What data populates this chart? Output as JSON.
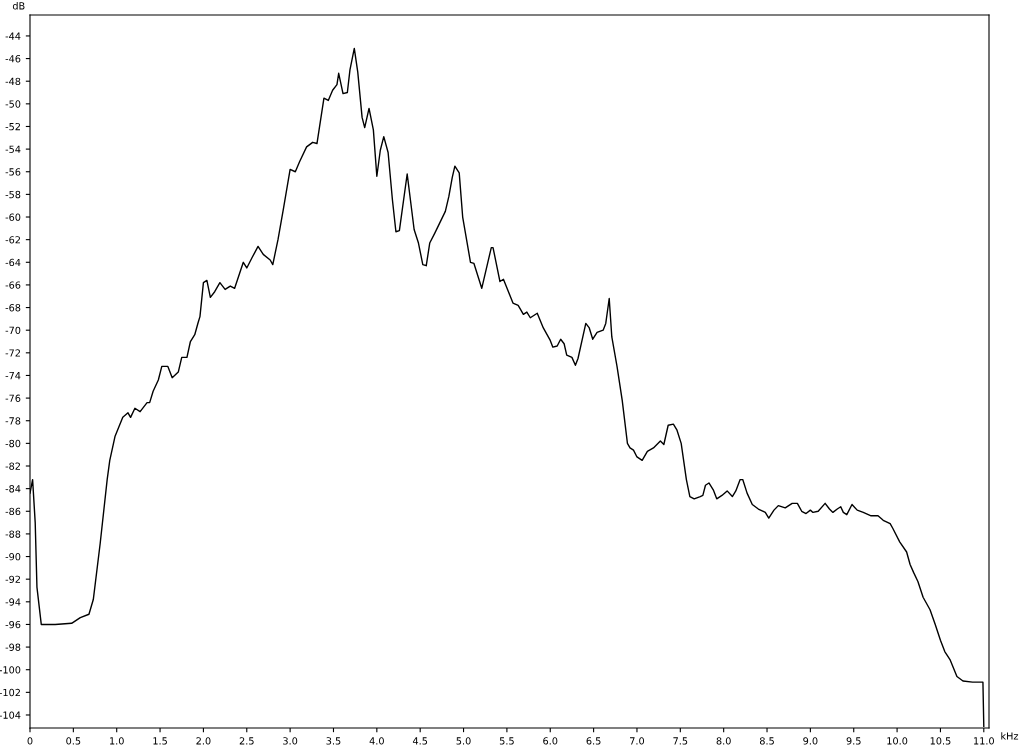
{
  "chart_data": {
    "type": "line",
    "xlabel": "kHz",
    "ylabel": "dB",
    "xlim": [
      0,
      11.06
    ],
    "ylim": [
      -105.15,
      -42.15
    ],
    "xticks": [
      {
        "value": 0,
        "label": "0"
      },
      {
        "value": 0.5,
        "label": "0.5"
      },
      {
        "value": 1,
        "label": "1.0"
      },
      {
        "value": 1.5,
        "label": "1.5"
      },
      {
        "value": 2,
        "label": "2.0"
      },
      {
        "value": 2.5,
        "label": "2.5"
      },
      {
        "value": 3,
        "label": "3.0"
      },
      {
        "value": 3.5,
        "label": "3.5"
      },
      {
        "value": 4,
        "label": "4.0"
      },
      {
        "value": 4.5,
        "label": "4.5"
      },
      {
        "value": 5,
        "label": "5.0"
      },
      {
        "value": 5.5,
        "label": "5.5"
      },
      {
        "value": 6,
        "label": "6.0"
      },
      {
        "value": 6.5,
        "label": "6.5"
      },
      {
        "value": 7,
        "label": "7.0"
      },
      {
        "value": 7.5,
        "label": "7.5"
      },
      {
        "value": 8,
        "label": "8.0"
      },
      {
        "value": 8.5,
        "label": "8.5"
      },
      {
        "value": 9,
        "label": "9.0"
      },
      {
        "value": 9.5,
        "label": "9.5"
      },
      {
        "value": 10,
        "label": "10.0"
      },
      {
        "value": 10.5,
        "label": "10.5"
      },
      {
        "value": 11,
        "label": "11.0"
      }
    ],
    "yticks": [
      -44,
      -46,
      -48,
      -50,
      -52,
      -54,
      -56,
      -58,
      -60,
      -62,
      -64,
      -66,
      -68,
      -70,
      -72,
      -74,
      -76,
      -78,
      -80,
      -82,
      -84,
      -86,
      -88,
      -90,
      -92,
      -94,
      -96,
      -98,
      -100,
      -102,
      -104
    ],
    "marker": "none",
    "line_style": "solid",
    "series": [
      {
        "color": "#000000",
        "x": [
          0.0,
          0.03,
          0.06,
          0.08,
          0.13,
          0.29,
          0.48,
          0.58,
          0.68,
          0.73,
          0.81,
          0.89,
          0.92,
          0.98,
          1.07,
          1.13,
          1.16,
          1.21,
          1.27,
          1.35,
          1.38,
          1.42,
          1.48,
          1.52,
          1.59,
          1.64,
          1.71,
          1.75,
          1.81,
          1.85,
          1.9,
          1.94,
          1.96,
          2.0,
          2.04,
          2.08,
          2.13,
          2.19,
          2.25,
          2.31,
          2.36,
          2.46,
          2.5,
          2.56,
          2.63,
          2.69,
          2.77,
          2.8,
          2.86,
          2.92,
          3.0,
          3.06,
          3.11,
          3.19,
          3.26,
          3.31,
          3.34,
          3.39,
          3.44,
          3.49,
          3.54,
          3.56,
          3.61,
          3.66,
          3.69,
          3.74,
          3.78,
          3.83,
          3.86,
          3.91,
          3.96,
          4.0,
          4.04,
          4.08,
          4.13,
          4.18,
          4.22,
          4.26,
          4.35,
          4.43,
          4.48,
          4.53,
          4.57,
          4.61,
          4.67,
          4.79,
          4.83,
          4.87,
          4.9,
          4.95,
          4.99,
          5.08,
          5.12,
          5.21,
          5.32,
          5.34,
          5.42,
          5.46,
          5.57,
          5.63,
          5.69,
          5.73,
          5.77,
          5.85,
          5.92,
          6.0,
          6.03,
          6.08,
          6.12,
          6.16,
          6.19,
          6.25,
          6.29,
          6.32,
          6.41,
          6.45,
          6.49,
          6.54,
          6.61,
          6.64,
          6.68,
          6.71,
          6.77,
          6.83,
          6.89,
          6.92,
          6.96,
          7.0,
          7.06,
          7.12,
          7.19,
          7.27,
          7.31,
          7.36,
          7.42,
          7.46,
          7.51,
          7.57,
          7.61,
          7.66,
          7.73,
          7.76,
          7.79,
          7.83,
          7.88,
          7.92,
          7.98,
          8.04,
          8.1,
          8.14,
          8.19,
          8.22,
          8.27,
          8.33,
          8.4,
          8.48,
          8.52,
          8.58,
          8.63,
          8.71,
          8.79,
          8.85,
          8.9,
          8.95,
          9.0,
          9.03,
          9.09,
          9.17,
          9.22,
          9.26,
          9.31,
          9.35,
          9.38,
          9.42,
          9.48,
          9.54,
          9.61,
          9.7,
          9.78,
          9.84,
          9.92,
          9.95,
          10.03,
          10.11,
          10.15,
          10.19,
          10.24,
          10.3,
          10.38,
          10.44,
          10.5,
          10.55,
          10.61,
          10.69,
          10.76,
          10.87,
          10.99,
          11.0
        ],
        "values": [
          -84.4,
          -83.2,
          -87.0,
          -92.7,
          -96.0,
          -96.0,
          -95.9,
          -95.4,
          -95.1,
          -93.8,
          -88.8,
          -83.2,
          -81.5,
          -79.4,
          -77.7,
          -77.3,
          -77.7,
          -76.9,
          -77.2,
          -76.4,
          -76.4,
          -75.4,
          -74.4,
          -73.2,
          -73.2,
          -74.2,
          -73.7,
          -72.4,
          -72.4,
          -71.0,
          -70.4,
          -69.3,
          -68.8,
          -65.8,
          -65.6,
          -67.1,
          -66.6,
          -65.8,
          -66.4,
          -66.1,
          -66.3,
          -64.0,
          -64.5,
          -63.6,
          -62.6,
          -63.3,
          -63.8,
          -64.2,
          -62.0,
          -59.4,
          -55.8,
          -56.0,
          -55.1,
          -53.8,
          -53.4,
          -53.5,
          -52.0,
          -49.5,
          -49.7,
          -48.8,
          -48.3,
          -47.3,
          -49.1,
          -49.0,
          -47.0,
          -45.1,
          -47.2,
          -51.2,
          -52.1,
          -50.4,
          -52.3,
          -56.4,
          -54.1,
          -52.9,
          -54.3,
          -58.5,
          -61.3,
          -61.2,
          -56.2,
          -61.1,
          -62.3,
          -64.2,
          -64.3,
          -62.3,
          -61.4,
          -59.5,
          -58.2,
          -56.5,
          -55.5,
          -56.1,
          -60.0,
          -64.0,
          -64.1,
          -66.3,
          -62.7,
          -62.7,
          -65.7,
          -65.5,
          -67.6,
          -67.8,
          -68.6,
          -68.4,
          -68.9,
          -68.5,
          -69.8,
          -70.9,
          -71.5,
          -71.4,
          -70.8,
          -71.2,
          -72.2,
          -72.4,
          -73.1,
          -72.5,
          -69.4,
          -69.8,
          -70.8,
          -70.2,
          -70.0,
          -69.4,
          -67.2,
          -70.6,
          -73.2,
          -76.2,
          -80.0,
          -80.4,
          -80.6,
          -81.2,
          -81.5,
          -80.7,
          -80.4,
          -79.8,
          -80.1,
          -78.4,
          -78.3,
          -78.8,
          -80.0,
          -83.2,
          -84.7,
          -84.9,
          -84.7,
          -84.6,
          -83.7,
          -83.5,
          -84.1,
          -84.9,
          -84.6,
          -84.2,
          -84.7,
          -84.2,
          -83.2,
          -83.2,
          -84.4,
          -85.4,
          -85.8,
          -86.1,
          -86.6,
          -85.9,
          -85.5,
          -85.7,
          -85.3,
          -85.3,
          -86.0,
          -86.2,
          -85.9,
          -86.1,
          -86.0,
          -85.3,
          -85.8,
          -86.1,
          -85.8,
          -85.6,
          -86.1,
          -86.3,
          -85.4,
          -85.9,
          -86.1,
          -86.4,
          -86.4,
          -86.8,
          -87.1,
          -87.5,
          -88.7,
          -89.6,
          -90.7,
          -91.4,
          -92.2,
          -93.6,
          -94.7,
          -96.0,
          -97.4,
          -98.4,
          -99.1,
          -100.6,
          -101.0,
          -101.1,
          -101.1,
          -105.0
        ]
      }
    ]
  }
}
